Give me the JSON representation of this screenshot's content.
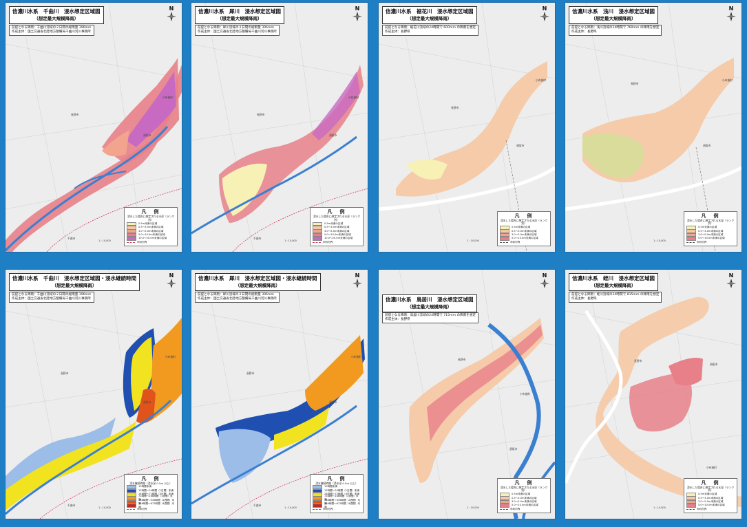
{
  "sheets": [
    {
      "title": "信濃川水系　千曲川　浸水想定区域図",
      "subtitle": "（想定最大規模降雨）",
      "meta": [
        "前提となる降雨：千曲川流域の２日間の総雨量 396mm",
        "作成主体：国土交通省北陸地方整備局千曲川河川事務所"
      ],
      "north": "N",
      "legend": {
        "title": "凡　例",
        "heading": "浸水した場合に想定される水深（ランク別）",
        "items": [
          "0.5m未満の区域",
          "0.5〜3.0m未満の区域",
          "3.0〜5.0m未満の区域",
          "5.0〜10.0m未満の区域",
          "10.0〜20.0m未満の区域"
        ],
        "line": "市町村界"
      },
      "scale": "1 : 10,000",
      "places": [
        "長野市",
        "須坂市",
        "千曲市",
        "小布施町"
      ]
    },
    {
      "title": "信濃川水系　犀川　浸水想定区域図",
      "subtitle": "（想定最大規模降雨）",
      "meta": [
        "前提となる降雨：犀川流域の２日間の総雨量 396mm",
        "作成主体：国土交通省北陸地方整備局千曲川河川事務所"
      ],
      "north": "N",
      "legend": {
        "title": "凡　例",
        "heading": "浸水した場合に想定される水深（ランク別）",
        "items": [
          "0.5m未満の区域",
          "0.5〜3.0m未満の区域",
          "3.0〜5.0m未満の区域",
          "5.0〜10.0m未満の区域",
          "10.0〜20.0m未満の区域"
        ],
        "line": "市町村界"
      },
      "scale": "1 : 10,000",
      "places": [
        "長野市",
        "須坂市",
        "千曲市",
        "小布施町"
      ]
    },
    {
      "title": "信濃川水系　裾花川　浸水想定区域図",
      "subtitle": "（想定最大規模降雨）",
      "meta": [
        "前提となる降雨：裾花川流域の24時間で 600mm の降雨を想定",
        "作成主体：長野県"
      ],
      "north": "N",
      "legend": {
        "title": "凡　例",
        "heading": "浸水した場合に想定される水深（ランク別）",
        "items": [
          "0.5m未満の区域",
          "0.5〜3.0m未満の区域",
          "3.0〜5.0m未満の区域",
          "5.0〜10.0m未満の区域"
        ],
        "line": "市町村界"
      },
      "scale": "1 : 10,000",
      "places": [
        "長野市",
        "須坂市",
        "小布施町"
      ]
    },
    {
      "title": "信濃川水系　浅川　浸水想定区域図",
      "subtitle": "（想定最大規模降雨）",
      "meta": [
        "前提となる降雨：浅川流域の24時間で 760mm の降雨を想定",
        "作成主体：長野県"
      ],
      "north": "N",
      "legend": {
        "title": "凡　例",
        "heading": "浸水した場合に想定される水深（ランク別）",
        "items": [
          "0.5m未満の区域",
          "0.5〜3.0m未満の区域",
          "3.0〜5.0m未満の区域",
          "5.0〜10.0m未満の区域"
        ],
        "line": "市町村界"
      },
      "scale": "1 : 10,000",
      "places": [
        "長野市",
        "須坂市",
        "小布施町"
      ]
    },
    {
      "title": "信濃川水系　千曲川　浸水想定区域図・浸水継続時間",
      "subtitle": "（想定最大規模降雨）",
      "meta": [
        "前提となる降雨：千曲川流域の２日間の総雨量 396mm",
        "作成主体：国土交通省北陸地方整備局千曲川河川事務所"
      ],
      "north": "N",
      "legend": {
        "title": "凡　例",
        "heading": "浸水継続時間（浸水深 0.5m 以上）",
        "items": [
          "12時間未満",
          "12時間〜24時間（1日間）未満",
          "24時間〜72時間（3日間）未満",
          "72時間〜168時間（1週間）未満",
          "168時間〜336時間（2週間）未満",
          "336時間〜672時間（4週間）未満"
        ],
        "line": "市町村界"
      },
      "scale": "1 : 10,000",
      "places": [
        "長野市",
        "須坂市",
        "千曲市",
        "小布施町"
      ]
    },
    {
      "title": "信濃川水系　犀川　浸水想定区域図・浸水継続時間",
      "subtitle": "（想定最大規模降雨）",
      "meta": [
        "前提となる降雨：犀川流域の２日間の総雨量 396mm",
        "作成主体：国土交通省北陸地方整備局千曲川河川事務所"
      ],
      "north": "N",
      "legend": {
        "title": "凡　例",
        "heading": "浸水継続時間（浸水深 0.5m 以上）",
        "items": [
          "12時間未満",
          "12時間〜24時間（1日間）未満",
          "24時間〜72時間（3日間）未満",
          "72時間〜168時間（1週間）未満",
          "168時間〜336時間（2週間）未満",
          "336時間〜672時間（4週間）未満"
        ],
        "line": "市町村界"
      },
      "scale": "1 : 10,000",
      "places": [
        "長野市",
        "須坂市",
        "千曲市",
        "小布施町"
      ]
    },
    {
      "title": "信濃川水系　鳥居川　浸水想定区域図",
      "subtitle": "（想定最大規模降雨）",
      "meta": [
        "前提となる降雨：鳥居川流域の24時間で 715mm の降雨を想定",
        "作成主体：長野県"
      ],
      "north": "N",
      "legend": {
        "title": "凡　例",
        "heading": "浸水した場合に想定される水深（ランク別）",
        "items": [
          "0.5m未満の区域",
          "0.5〜3.0m未満の区域",
          "3.0〜5.0m未満の区域",
          "5.0〜10.0m未満の区域"
        ],
        "line": "市町村界"
      },
      "scale": "1 : 10,000",
      "places": [
        "長野市",
        "須坂市",
        "小布施町"
      ]
    },
    {
      "title": "信濃川水系　蛭川　浸水想定区域図",
      "subtitle": "（想定最大規模降雨）",
      "meta": [
        "前提となる降雨：蛭川流域の24時間で 815mm の降雨を想定",
        "作成主体：長野県"
      ],
      "north": "N",
      "legend": {
        "title": "凡　例",
        "heading": "浸水した場合に想定される水深（ランク別）",
        "items": [
          "0.5m未満の区域",
          "0.5〜3.0m未満の区域",
          "3.0〜5.0m未満の区域",
          "5.0〜10.0m未満の区域"
        ],
        "line": "市町村界"
      },
      "scale": "1 : 10,000",
      "places": [
        "長野市",
        "須坂市",
        "小布施町"
      ]
    }
  ],
  "colors": {
    "background": "#1f7fc4",
    "river": "#3a7fd0",
    "depth": [
      "#f7f1b6",
      "#f6c9a6",
      "#f2a48f",
      "#e8808a",
      "#c86ac2"
    ],
    "duration": [
      "#9bbde8",
      "#1f4fb0",
      "#f2e320",
      "#f29a20",
      "#e0541c",
      "#c02a1c"
    ],
    "boundary": "#d04060"
  }
}
